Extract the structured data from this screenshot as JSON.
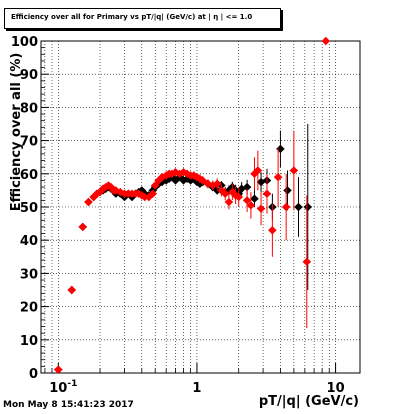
{
  "title": "Efficiency over all for Primary vs pT/|q| (GeV/c) at | η | <= 1.0",
  "timestamp": "Mon May  8 15:41:23 2017",
  "colors": {
    "series_black": "#000000",
    "series_red": "#ff0000",
    "grid": "#000000"
  },
  "chart_data": {
    "type": "scatter",
    "title": "Efficiency over all for Primary vs pT/|q| (GeV/c) at | η | <= 1.0",
    "xlabel": "pT/|q| (GeV/c)",
    "ylabel": "Efficiency over all (%)",
    "xscale": "log",
    "xlim": [
      0.075,
      15
    ],
    "ylim": [
      0,
      100
    ],
    "yticks": [
      0,
      10,
      20,
      30,
      40,
      50,
      60,
      70,
      80,
      90,
      100
    ],
    "xtick_labels": [
      {
        "value": 0.1,
        "label": "10",
        "sup": "-1"
      },
      {
        "value": 1,
        "label": "1",
        "sup": ""
      },
      {
        "value": 10,
        "label": "10",
        "sup": ""
      }
    ],
    "grid": true,
    "series": [
      {
        "color": "#000000",
        "points": [
          [
            0.1,
            1,
            0
          ],
          [
            0.125,
            25,
            0
          ],
          [
            0.15,
            44,
            0
          ],
          [
            0.165,
            51.5,
            0.6
          ],
          [
            0.18,
            53,
            0.6
          ],
          [
            0.19,
            54,
            0.6
          ],
          [
            0.2,
            54.5,
            0.6
          ],
          [
            0.21,
            55,
            0.6
          ],
          [
            0.22,
            55.5,
            0.6
          ],
          [
            0.23,
            56,
            0.6
          ],
          [
            0.24,
            55.5,
            0.6
          ],
          [
            0.25,
            55,
            0.6
          ],
          [
            0.26,
            54,
            0.6
          ],
          [
            0.28,
            54,
            0.6
          ],
          [
            0.3,
            53,
            0.7
          ],
          [
            0.32,
            54,
            0.7
          ],
          [
            0.34,
            53,
            0.7
          ],
          [
            0.36,
            54,
            0.7
          ],
          [
            0.38,
            54.5,
            0.7
          ],
          [
            0.4,
            55,
            0.7
          ],
          [
            0.42,
            54,
            0.7
          ],
          [
            0.45,
            53.5,
            0.7
          ],
          [
            0.48,
            55,
            0.7
          ],
          [
            0.5,
            56,
            0.8
          ],
          [
            0.53,
            57,
            0.8
          ],
          [
            0.56,
            57.5,
            0.8
          ],
          [
            0.6,
            58,
            0.8
          ],
          [
            0.63,
            58.5,
            0.8
          ],
          [
            0.66,
            59,
            0.8
          ],
          [
            0.7,
            58,
            0.8
          ],
          [
            0.75,
            59,
            0.9
          ],
          [
            0.8,
            58,
            0.9
          ],
          [
            0.85,
            58.5,
            0.9
          ],
          [
            0.9,
            58,
            0.9
          ],
          [
            0.95,
            58.5,
            0.9
          ],
          [
            1.0,
            57.5,
            1.0
          ],
          [
            1.05,
            57,
            1.0
          ],
          [
            1.1,
            57.5,
            1.0
          ],
          [
            1.2,
            57,
            1.1
          ],
          [
            1.3,
            56,
            1.2
          ],
          [
            1.4,
            55,
            1.2
          ],
          [
            1.5,
            56.5,
            1.3
          ],
          [
            1.6,
            54.5,
            1.4
          ],
          [
            1.7,
            55,
            1.5
          ],
          [
            1.8,
            56,
            1.6
          ],
          [
            1.9,
            55,
            1.7
          ],
          [
            2.0,
            54,
            1.8
          ],
          [
            2.1,
            55.5,
            2.0
          ],
          [
            2.3,
            56,
            2.2
          ],
          [
            2.6,
            52.5,
            2.5
          ],
          [
            2.9,
            57.5,
            3.0
          ],
          [
            3.2,
            58,
            3.5
          ],
          [
            3.5,
            50,
            4.0
          ],
          [
            4.0,
            67.5,
            5.5
          ],
          [
            4.5,
            55,
            6.0
          ],
          [
            5.4,
            50,
            9.0
          ],
          [
            6.3,
            50,
            25
          ]
        ]
      },
      {
        "color": "#ff0000",
        "points": [
          [
            0.1,
            1,
            0.5
          ],
          [
            0.125,
            25,
            0.5
          ],
          [
            0.15,
            44,
            1
          ],
          [
            0.165,
            51.5,
            0.8
          ],
          [
            0.18,
            53,
            0.8
          ],
          [
            0.19,
            54,
            0.8
          ],
          [
            0.2,
            54.5,
            0.8
          ],
          [
            0.21,
            55.5,
            0.8
          ],
          [
            0.22,
            56,
            0.8
          ],
          [
            0.23,
            56.5,
            0.8
          ],
          [
            0.24,
            56,
            0.8
          ],
          [
            0.25,
            55,
            0.8
          ],
          [
            0.26,
            55,
            0.8
          ],
          [
            0.28,
            54.5,
            0.8
          ],
          [
            0.3,
            54,
            0.8
          ],
          [
            0.32,
            54,
            0.8
          ],
          [
            0.34,
            54,
            0.8
          ],
          [
            0.36,
            54,
            0.8
          ],
          [
            0.38,
            54,
            0.8
          ],
          [
            0.4,
            53.5,
            0.8
          ],
          [
            0.42,
            53,
            0.8
          ],
          [
            0.45,
            53,
            0.8
          ],
          [
            0.48,
            54,
            0.9
          ],
          [
            0.5,
            56.5,
            0.9
          ],
          [
            0.53,
            58,
            0.9
          ],
          [
            0.56,
            59,
            0.9
          ],
          [
            0.6,
            59.5,
            1.0
          ],
          [
            0.63,
            60,
            1.0
          ],
          [
            0.66,
            60,
            1.0
          ],
          [
            0.7,
            60.5,
            1.0
          ],
          [
            0.75,
            60,
            1.0
          ],
          [
            0.8,
            60.5,
            1.1
          ],
          [
            0.85,
            60,
            1.1
          ],
          [
            0.9,
            59.5,
            1.1
          ],
          [
            0.95,
            59.5,
            1.2
          ],
          [
            1.0,
            59,
            1.2
          ],
          [
            1.05,
            58.5,
            1.3
          ],
          [
            1.1,
            58,
            1.3
          ],
          [
            1.2,
            57,
            1.4
          ],
          [
            1.3,
            56.5,
            1.5
          ],
          [
            1.4,
            57,
            1.6
          ],
          [
            1.5,
            55,
            1.8
          ],
          [
            1.6,
            54,
            2.0
          ],
          [
            1.7,
            51.5,
            2.2
          ],
          [
            1.8,
            54.5,
            2.4
          ],
          [
            1.9,
            53.5,
            2.6
          ],
          [
            2.0,
            53,
            2.8
          ],
          [
            2.3,
            52,
            3.5
          ],
          [
            2.45,
            50.5,
            4
          ],
          [
            2.6,
            60,
            5
          ],
          [
            2.75,
            61,
            6
          ],
          [
            2.9,
            49.5,
            5
          ],
          [
            3.2,
            54,
            6
          ],
          [
            3.5,
            43,
            8
          ],
          [
            3.85,
            59,
            9
          ],
          [
            4.4,
            50,
            10
          ],
          [
            5.0,
            61,
            12
          ],
          [
            6.2,
            33.5,
            20
          ],
          [
            8.5,
            100,
            0
          ]
        ]
      }
    ]
  }
}
